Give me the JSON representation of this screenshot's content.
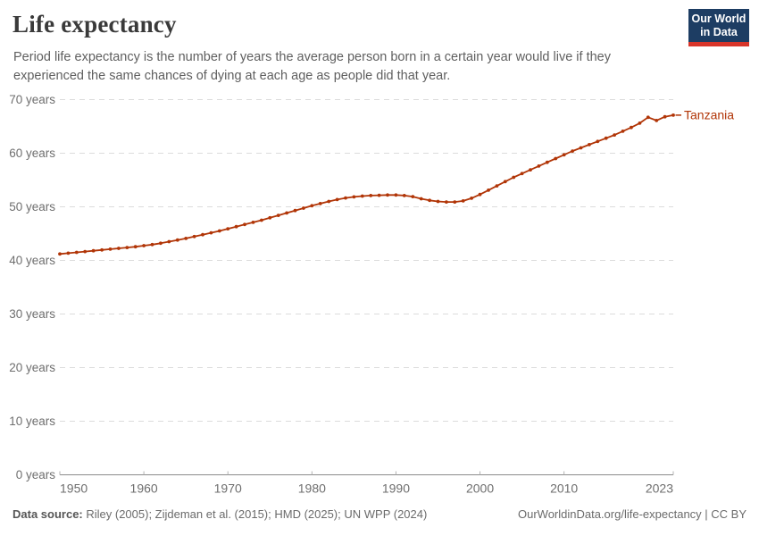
{
  "header": {
    "title": "Life expectancy",
    "subtitle_lines": [
      "Period life expectancy is the number of years the average person born in a certain year would live if they",
      "experienced the same chances of dying at each age as people did that year."
    ],
    "logo": {
      "line1": "Our World",
      "line2": "in Data"
    }
  },
  "chart_data": {
    "type": "line",
    "title": "Life expectancy",
    "entity": "Tanzania",
    "xlabel": "",
    "ylabel": "",
    "xlim": [
      1950,
      2023
    ],
    "ylim": [
      0,
      70
    ],
    "grid": "horizontal-dashed",
    "legend_position": "end-of-line-label",
    "line_color": "#b13507",
    "x": [
      1950,
      1951,
      1952,
      1953,
      1954,
      1955,
      1956,
      1957,
      1958,
      1959,
      1960,
      1961,
      1962,
      1963,
      1964,
      1965,
      1966,
      1967,
      1968,
      1969,
      1970,
      1971,
      1972,
      1973,
      1974,
      1975,
      1976,
      1977,
      1978,
      1979,
      1980,
      1981,
      1982,
      1983,
      1984,
      1985,
      1986,
      1987,
      1988,
      1989,
      1990,
      1991,
      1992,
      1993,
      1994,
      1995,
      1996,
      1997,
      1998,
      1999,
      2000,
      2001,
      2002,
      2003,
      2004,
      2005,
      2006,
      2007,
      2008,
      2009,
      2010,
      2011,
      2012,
      2013,
      2014,
      2015,
      2016,
      2017,
      2018,
      2019,
      2020,
      2021,
      2022,
      2023
    ],
    "series": [
      {
        "name": "Tanzania",
        "color": "#b13507",
        "values": [
          41.2,
          41.35,
          41.5,
          41.65,
          41.8,
          41.95,
          42.1,
          42.25,
          42.4,
          42.55,
          42.75,
          42.95,
          43.2,
          43.5,
          43.8,
          44.1,
          44.45,
          44.8,
          45.15,
          45.5,
          45.9,
          46.3,
          46.7,
          47.1,
          47.5,
          47.95,
          48.4,
          48.85,
          49.3,
          49.75,
          50.2,
          50.6,
          51.0,
          51.35,
          51.65,
          51.85,
          52.0,
          52.1,
          52.15,
          52.2,
          52.2,
          52.1,
          51.9,
          51.5,
          51.2,
          51.0,
          50.9,
          50.9,
          51.1,
          51.6,
          52.3,
          53.1,
          53.9,
          54.7,
          55.5,
          56.2,
          56.9,
          57.6,
          58.3,
          59.0,
          59.7,
          60.4,
          61.0,
          61.6,
          62.2,
          62.8,
          63.4,
          64.1,
          64.8,
          65.6,
          66.7,
          66.1,
          66.8,
          67.1
        ]
      }
    ],
    "y_ticks": [
      {
        "value": 0,
        "label": "0 years"
      },
      {
        "value": 10,
        "label": "10 years"
      },
      {
        "value": 20,
        "label": "20 years"
      },
      {
        "value": 30,
        "label": "30 years"
      },
      {
        "value": 40,
        "label": "40 years"
      },
      {
        "value": 50,
        "label": "50 years"
      },
      {
        "value": 60,
        "label": "60 years"
      },
      {
        "value": 70,
        "label": "70 years"
      }
    ],
    "x_ticks": [
      {
        "value": 1950,
        "label": "1950"
      },
      {
        "value": 1960,
        "label": "1960"
      },
      {
        "value": 1970,
        "label": "1970"
      },
      {
        "value": 1980,
        "label": "1980"
      },
      {
        "value": 1990,
        "label": "1990"
      },
      {
        "value": 2000,
        "label": "2000"
      },
      {
        "value": 2010,
        "label": "2010"
      },
      {
        "value": 2023,
        "label": "2023"
      }
    ]
  },
  "footer": {
    "source_label": "Data source:",
    "source_text": " Riley (2005); Zijdeman et al. (2015); HMD (2025); UN WPP (2024)",
    "link_text": "OurWorldinData.org/life-expectancy | CC BY"
  },
  "colors": {
    "line": "#b13507",
    "grid": "#dcdcdc",
    "axis": "#8c8c8c",
    "tick_label": "#6e6e6e",
    "logo_navy": "#1d3d63",
    "logo_red": "#d8352a"
  }
}
